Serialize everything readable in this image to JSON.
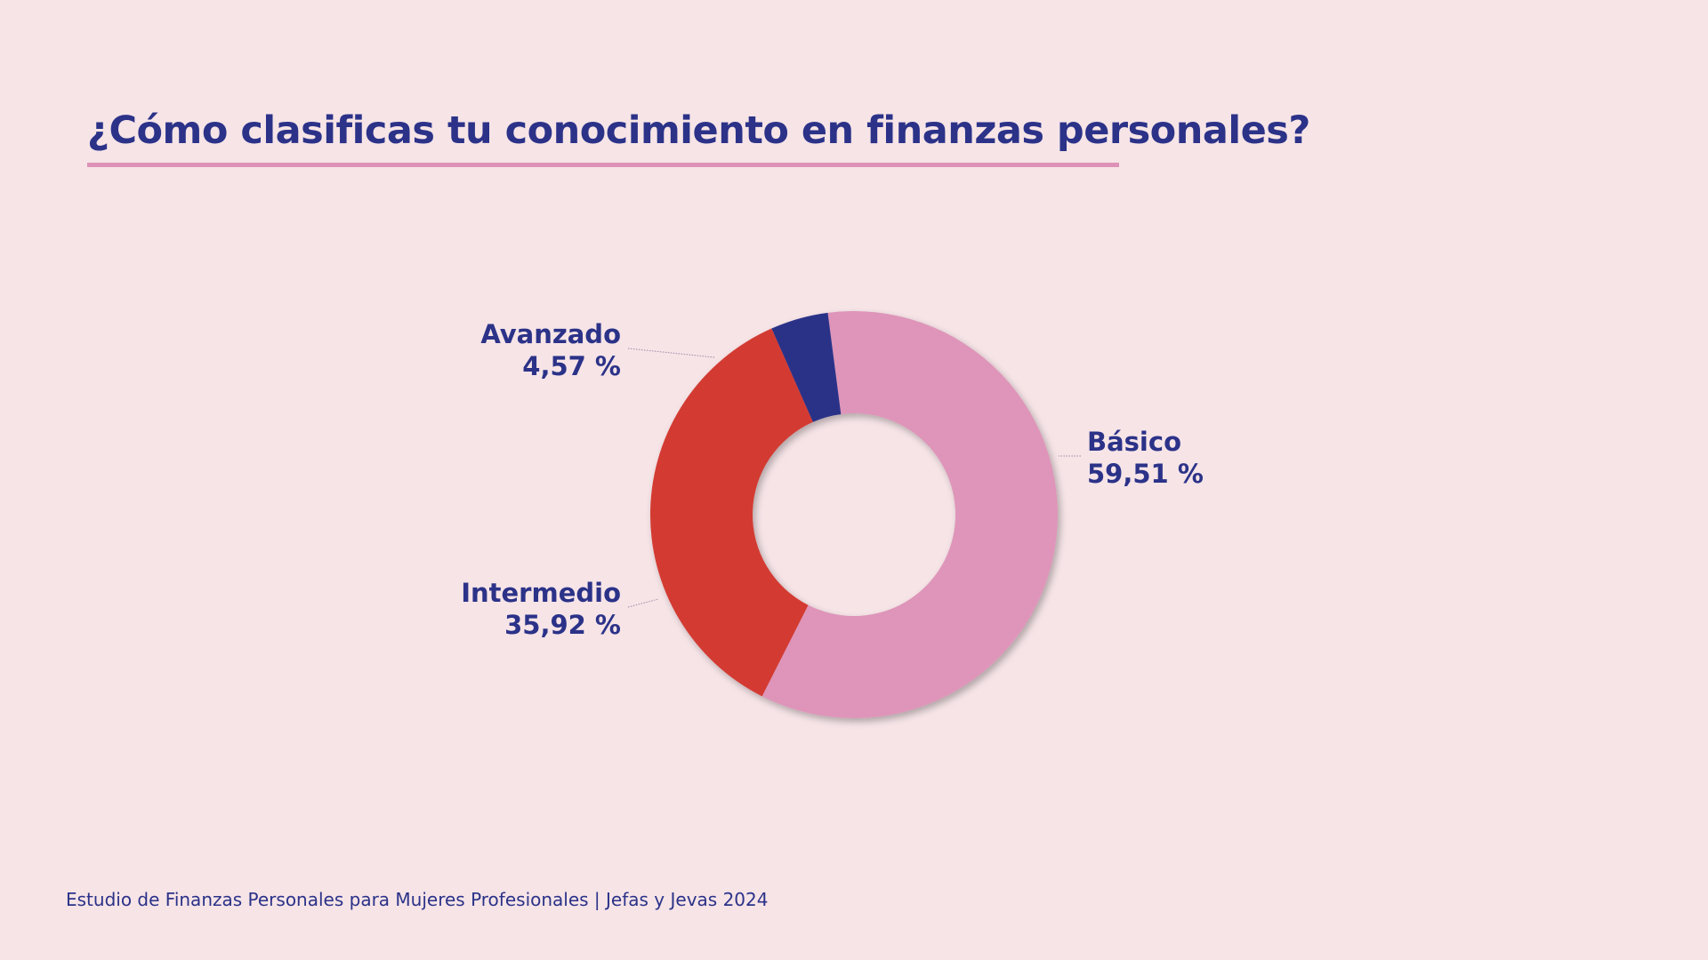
{
  "title": "¿Cómo clasificas tu conocimiento en finanzas personales?",
  "footer": "Estudio de Finanzas Personales para Mujeres Profesionales | Jefas y Jevas 2024",
  "colors": {
    "background": "#f6e4e7",
    "text": "#2b3288",
    "accent_underline": "#de92b7"
  },
  "chart_data": {
    "type": "pie",
    "variant": "donut",
    "title": "¿Cómo clasificas tu conocimiento en finanzas personales?",
    "slices": [
      {
        "label": "Básico",
        "value": 59.51,
        "value_label": "59,51 %",
        "color": "#de95b9",
        "label_side": "right"
      },
      {
        "label": "Intermedio",
        "value": 35.92,
        "value_label": "35,92 %",
        "color": "#d33a33",
        "label_side": "left"
      },
      {
        "label": "Avanzado",
        "value": 4.57,
        "value_label": "4,57 %",
        "color": "#2b3288",
        "label_side": "left"
      }
    ],
    "legend": "none"
  }
}
